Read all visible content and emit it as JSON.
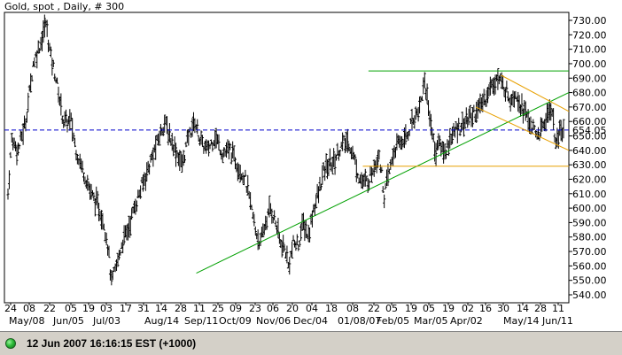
{
  "chart_data": {
    "type": "bar",
    "title": "Gold, spot , Daily, # 300",
    "y_axis": {
      "min": 540,
      "max": 730,
      "ticks": [
        "730.00",
        "720.00",
        "710.00",
        "700.00",
        "690.00",
        "680.00",
        "670.00",
        "660.00",
        "650.00",
        "640.00",
        "630.00",
        "620.00",
        "610.00",
        "600.00",
        "590.00",
        "580.00",
        "570.00",
        "560.00",
        "550.00",
        "540.00"
      ],
      "tick_values": [
        730,
        720,
        710,
        700,
        690,
        680,
        670,
        660,
        650,
        640,
        630,
        620,
        610,
        600,
        590,
        580,
        570,
        560,
        550,
        540
      ]
    },
    "x_axis": {
      "day_labels": [
        "24",
        "08",
        "22",
        "05",
        "19",
        "03",
        "17",
        "31",
        "14",
        "28",
        "11",
        "25",
        "09",
        "23",
        "06",
        "20",
        "04",
        "18",
        "08",
        "22",
        "05",
        "19",
        "05",
        "19",
        "02",
        "16",
        "30",
        "14",
        "28",
        "11"
      ],
      "date_labels": [
        "May/08",
        "Jun/05",
        "Jul/03",
        "Aug/14",
        "Sep/11",
        "Oct/09",
        "Nov/06",
        "Dec/04",
        "01/08/07",
        "Feb/05",
        "Mar/05",
        "Apr/02",
        "May/14",
        "Jun/11"
      ]
    },
    "current_value": {
      "label": "654.05",
      "value": 654.05
    },
    "price_anchors": [
      [
        0,
        610
      ],
      [
        3,
        648
      ],
      [
        8,
        640
      ],
      [
        14,
        660
      ],
      [
        20,
        700
      ],
      [
        26,
        715
      ],
      [
        30,
        728
      ],
      [
        34,
        705
      ],
      [
        38,
        690
      ],
      [
        44,
        660
      ],
      [
        50,
        660
      ],
      [
        54,
        640
      ],
      [
        60,
        625
      ],
      [
        66,
        610
      ],
      [
        72,
        600
      ],
      [
        76,
        590
      ],
      [
        79,
        575
      ],
      [
        82,
        548
      ],
      [
        86,
        560
      ],
      [
        90,
        575
      ],
      [
        95,
        585
      ],
      [
        100,
        600
      ],
      [
        106,
        615
      ],
      [
        112,
        630
      ],
      [
        118,
        645
      ],
      [
        124,
        660
      ],
      [
        128,
        650
      ],
      [
        133,
        640
      ],
      [
        138,
        630
      ],
      [
        143,
        650
      ],
      [
        148,
        660
      ],
      [
        153,
        645
      ],
      [
        158,
        640
      ],
      [
        164,
        650
      ],
      [
        170,
        638
      ],
      [
        176,
        640
      ],
      [
        182,
        630
      ],
      [
        188,
        620
      ],
      [
        192,
        603
      ],
      [
        196,
        585
      ],
      [
        200,
        575
      ],
      [
        204,
        590
      ],
      [
        208,
        600
      ],
      [
        212,
        590
      ],
      [
        216,
        575
      ],
      [
        220,
        570
      ],
      [
        222,
        560
      ],
      [
        226,
        575
      ],
      [
        230,
        575
      ],
      [
        234,
        590
      ],
      [
        238,
        580
      ],
      [
        242,
        600
      ],
      [
        246,
        610
      ],
      [
        250,
        625
      ],
      [
        254,
        630
      ],
      [
        258,
        632
      ],
      [
        262,
        640
      ],
      [
        266,
        645
      ],
      [
        270,
        645
      ],
      [
        274,
        635
      ],
      [
        278,
        622
      ],
      [
        282,
        617
      ],
      [
        286,
        620
      ],
      [
        290,
        630
      ],
      [
        294,
        638
      ],
      [
        298,
        608
      ],
      [
        302,
        625
      ],
      [
        306,
        640
      ],
      [
        310,
        645
      ],
      [
        316,
        650
      ],
      [
        320,
        660
      ],
      [
        326,
        670
      ],
      [
        330,
        688
      ],
      [
        334,
        665
      ],
      [
        338,
        640
      ],
      [
        342,
        645
      ],
      [
        346,
        638
      ],
      [
        350,
        648
      ],
      [
        356,
        655
      ],
      [
        362,
        660
      ],
      [
        368,
        665
      ],
      [
        374,
        670
      ],
      [
        380,
        680
      ],
      [
        386,
        690
      ],
      [
        390,
        688
      ],
      [
        394,
        682
      ],
      [
        398,
        676
      ],
      [
        402,
        680
      ],
      [
        406,
        672
      ],
      [
        410,
        665
      ],
      [
        414,
        658
      ],
      [
        418,
        650
      ],
      [
        422,
        653
      ],
      [
        426,
        662
      ],
      [
        430,
        670
      ],
      [
        432,
        660
      ],
      [
        434,
        643
      ],
      [
        437,
        652
      ],
      [
        440,
        654
      ]
    ],
    "trendlines": [
      {
        "color": "#00a000",
        "x1": 0.34,
        "y1": 555,
        "x2": 1.0,
        "y2": 680
      },
      {
        "color": "#00a000",
        "x1": 0.645,
        "y1": 695,
        "x2": 1.0,
        "y2": 695
      },
      {
        "color": "#e8a000",
        "x1": 0.635,
        "y1": 629,
        "x2": 1.0,
        "y2": 629
      },
      {
        "color": "#e8a000",
        "x1": 0.88,
        "y1": 692,
        "x2": 1.0,
        "y2": 667
      },
      {
        "color": "#e8a000",
        "x1": 0.835,
        "y1": 670,
        "x2": 1.0,
        "y2": 640
      }
    ],
    "reference_line": {
      "color": "#0000cc",
      "value": 654.05,
      "style": "dashed"
    }
  },
  "status": {
    "text": "12 Jun 2007 16:16:15  EST (+1000)"
  }
}
